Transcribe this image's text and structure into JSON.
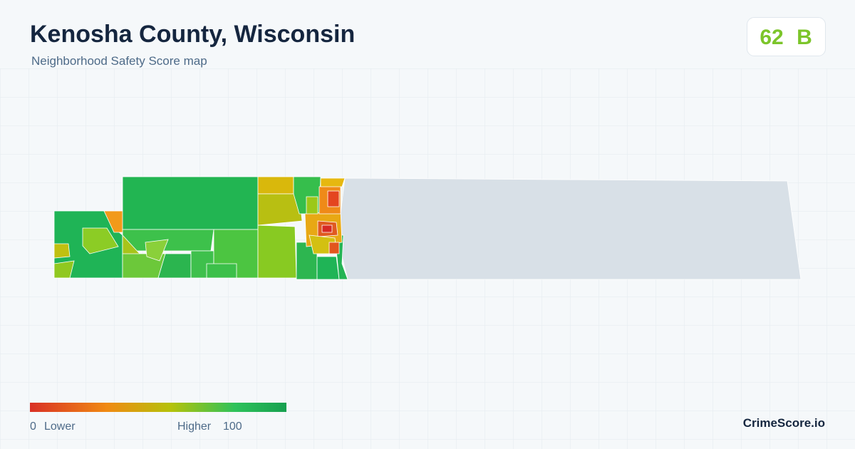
{
  "header": {
    "title": "Kenosha County, Wisconsin",
    "subtitle": "Neighborhood Safety Score map"
  },
  "score": {
    "value": 62,
    "grade": "B"
  },
  "legend": {
    "min": 0,
    "min_label": "Lower",
    "max_label": "Higher",
    "max": 100
  },
  "brand": "CrimeScore.io"
}
